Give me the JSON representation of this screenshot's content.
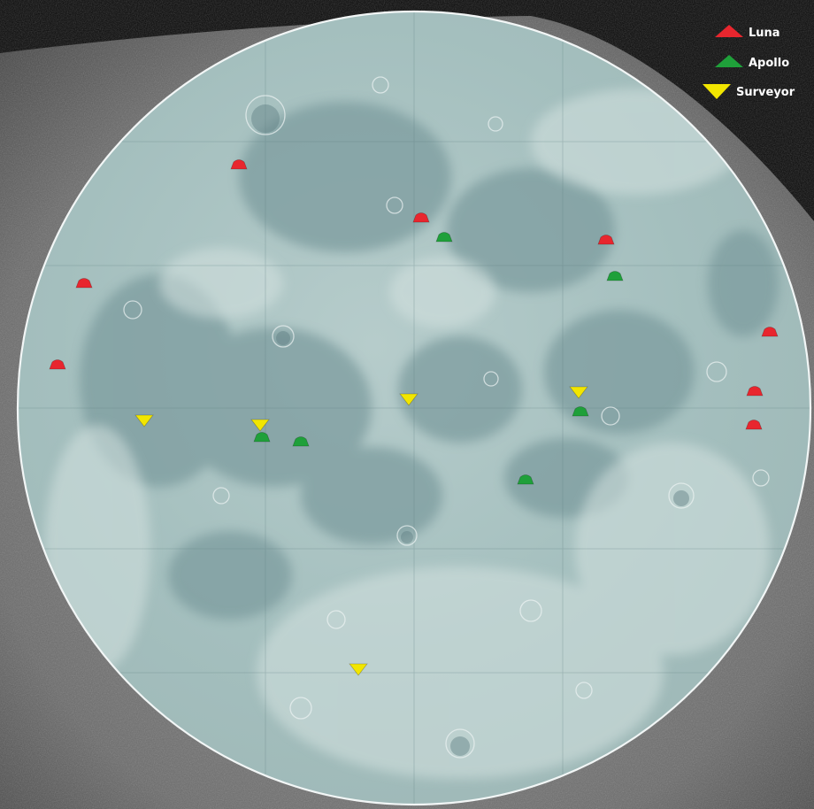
{
  "legend": {
    "items": [
      {
        "label": "Luna",
        "color": "#e8262e",
        "shape": "triangle-up-icon"
      },
      {
        "label": "Apollo",
        "color": "#1fa03a",
        "shape": "triangle-up-icon"
      },
      {
        "label": "Surveyor",
        "color": "#f2e600",
        "shape": "triangle-down-icon"
      }
    ]
  },
  "colors": {
    "moon_base": "#a9c2c0",
    "moon_mare": "#7f9ea0",
    "moon_highland": "#c8d8d6",
    "moon_rim": "#f2f6f6",
    "background_rock": "#6d6d6d",
    "space": "#060606"
  }
}
